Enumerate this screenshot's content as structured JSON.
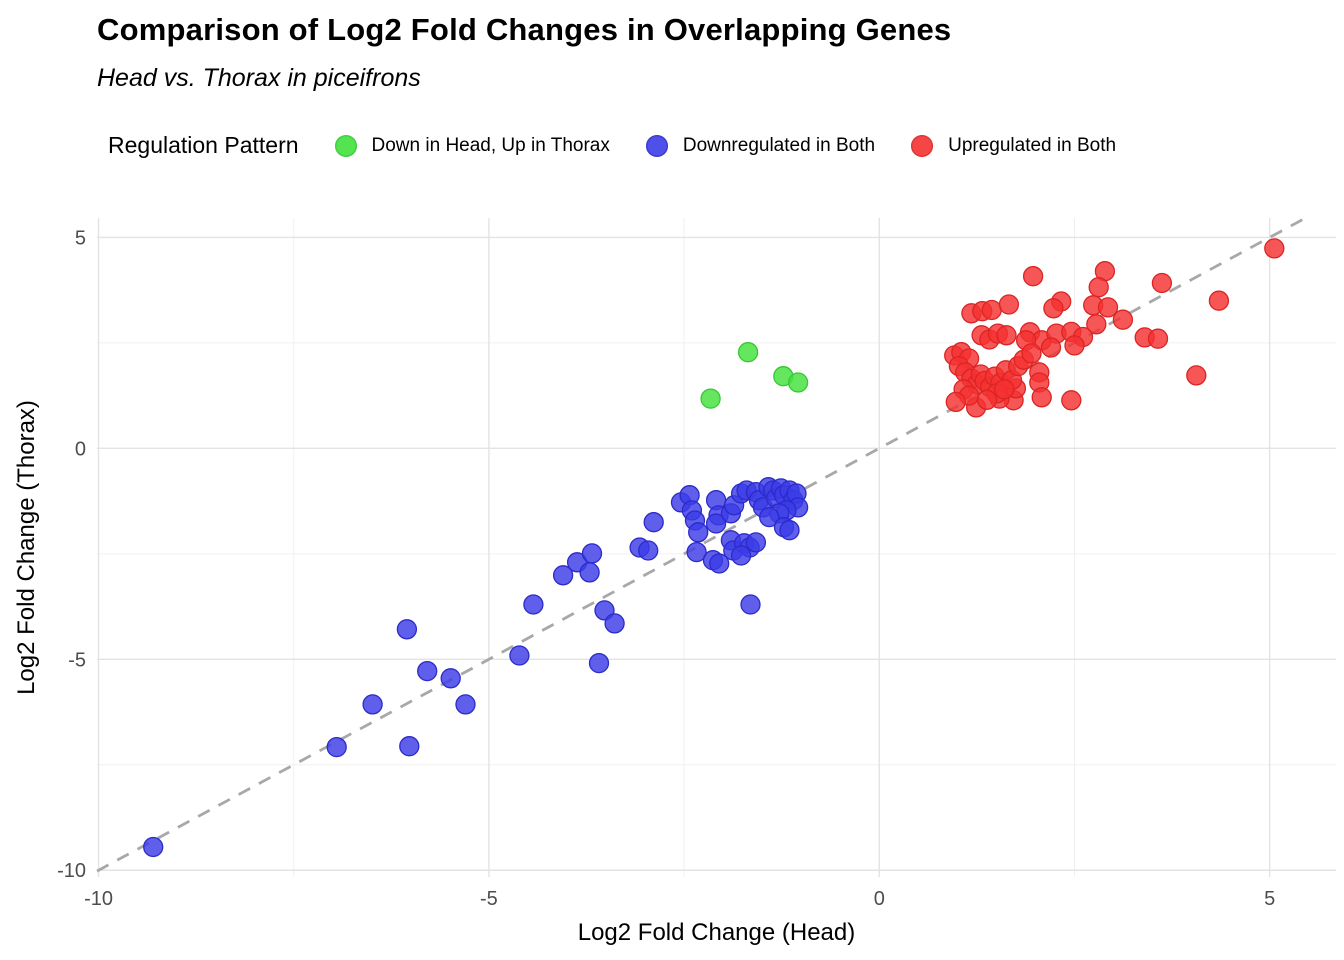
{
  "header": {
    "title": "Comparison of Log2 Fold Changes in Overlapping Genes",
    "subtitle": "Head vs. Thorax in piceifrons"
  },
  "legend": {
    "title": "Regulation Pattern",
    "position": "top"
  },
  "chart_data": {
    "type": "scatter",
    "title": "Comparison of Log2 Fold Changes in Overlapping Genes",
    "subtitle": "Head vs. Thorax in piceifrons",
    "xlabel": "Log2 Fold Change (Head)",
    "ylabel": "Log2 Fold Change (Thorax)",
    "xlim": [
      -10.02,
      5.85
    ],
    "ylim": [
      -10.16,
      5.46
    ],
    "x_ticks": [
      -10,
      -5,
      0,
      5
    ],
    "x_tick_labels": [
      "-10",
      "-5",
      "0",
      "5"
    ],
    "y_ticks": [
      5,
      0,
      -5,
      -10
    ],
    "y_tick_labels": [
      "5",
      "0",
      "-5",
      "-10"
    ],
    "x_minor_ticks": [
      -7.5,
      -2.5,
      2.5
    ],
    "y_minor_ticks": [
      -7.5,
      -2.5,
      2.5
    ],
    "grid": true,
    "identity_line": {
      "type": "dashed",
      "slope": 1,
      "intercept": 0,
      "color": "#a8a8a8"
    },
    "point_radius": 9.5,
    "point_opacity": 0.82,
    "colors": {
      "major_grid": "#e3e3e3",
      "minor_grid": "#f0f0f0",
      "tick_text": "#4d4d4d"
    },
    "series": [
      {
        "name": "Down in Head, Up in Thorax",
        "color": "#42E23C",
        "stroke": "#35C832",
        "points": [
          [
            -1.68,
            2.28
          ],
          [
            -1.23,
            1.71
          ],
          [
            -1.04,
            1.56
          ],
          [
            -2.16,
            1.18
          ]
        ]
      },
      {
        "name": "Downregulated in Both",
        "color": "#3C3CE8",
        "stroke": "#2B2BC9",
        "points": [
          [
            -9.3,
            -9.45
          ],
          [
            -6.95,
            -7.08
          ],
          [
            -6.02,
            -7.06
          ],
          [
            -6.49,
            -6.07
          ],
          [
            -5.3,
            -6.07
          ],
          [
            -5.79,
            -5.28
          ],
          [
            -5.49,
            -5.45
          ],
          [
            -6.05,
            -4.29
          ],
          [
            -4.61,
            -4.91
          ],
          [
            -3.59,
            -5.09
          ],
          [
            -4.43,
            -3.7
          ],
          [
            -4.05,
            -3.01
          ],
          [
            -3.87,
            -2.7
          ],
          [
            -3.68,
            -2.49
          ],
          [
            -3.71,
            -2.94
          ],
          [
            -3.52,
            -3.84
          ],
          [
            -3.39,
            -4.15
          ],
          [
            -3.07,
            -2.35
          ],
          [
            -2.89,
            -1.75
          ],
          [
            -2.96,
            -2.42
          ],
          [
            -2.54,
            -1.28
          ],
          [
            -2.43,
            -1.11
          ],
          [
            -2.4,
            -1.47
          ],
          [
            -2.36,
            -1.71
          ],
          [
            -2.32,
            -1.99
          ],
          [
            -2.09,
            -1.23
          ],
          [
            -2.06,
            -1.59
          ],
          [
            -2.09,
            -1.78
          ],
          [
            -2.34,
            -2.46
          ],
          [
            -2.13,
            -2.65
          ],
          [
            -2.05,
            -2.73
          ],
          [
            -1.9,
            -2.18
          ],
          [
            -1.87,
            -2.42
          ],
          [
            -1.73,
            -2.25
          ],
          [
            -1.66,
            -2.35
          ],
          [
            -1.9,
            -1.54
          ],
          [
            -1.86,
            -1.35
          ],
          [
            -1.77,
            -1.07
          ],
          [
            -1.7,
            -1.0
          ],
          [
            -1.58,
            -1.04
          ],
          [
            -1.54,
            -1.23
          ],
          [
            -1.49,
            -1.4
          ],
          [
            -1.42,
            -0.92
          ],
          [
            -1.36,
            -1.0
          ],
          [
            -1.32,
            -1.18
          ],
          [
            -1.26,
            -0.95
          ],
          [
            -1.22,
            -1.11
          ],
          [
            -1.15,
            -1.0
          ],
          [
            -1.1,
            -1.23
          ],
          [
            -1.06,
            -1.07
          ],
          [
            -1.04,
            -1.4
          ],
          [
            -1.19,
            -1.47
          ],
          [
            -1.28,
            -1.54
          ],
          [
            -1.41,
            -1.63
          ],
          [
            -1.22,
            -1.87
          ],
          [
            -1.15,
            -1.94
          ],
          [
            -1.65,
            -3.7
          ],
          [
            -1.58,
            -2.23
          ],
          [
            -1.77,
            -2.54
          ]
        ]
      },
      {
        "name": "Upregulated in Both",
        "color": "#F53131",
        "stroke": "#DB2424",
        "points": [
          [
            5.06,
            4.74
          ],
          [
            2.89,
            4.2
          ],
          [
            1.97,
            4.08
          ],
          [
            2.81,
            3.82
          ],
          [
            3.62,
            3.92
          ],
          [
            4.35,
            3.5
          ],
          [
            2.74,
            3.39
          ],
          [
            2.93,
            3.34
          ],
          [
            2.33,
            3.48
          ],
          [
            2.23,
            3.32
          ],
          [
            1.18,
            3.2
          ],
          [
            1.32,
            3.25
          ],
          [
            1.44,
            3.28
          ],
          [
            1.66,
            3.41
          ],
          [
            3.12,
            3.05
          ],
          [
            2.78,
            2.94
          ],
          [
            1.93,
            2.75
          ],
          [
            2.08,
            2.56
          ],
          [
            2.27,
            2.72
          ],
          [
            2.46,
            2.76
          ],
          [
            2.61,
            2.64
          ],
          [
            3.4,
            2.63
          ],
          [
            3.57,
            2.6
          ],
          [
            1.31,
            2.68
          ],
          [
            1.41,
            2.58
          ],
          [
            1.52,
            2.72
          ],
          [
            1.63,
            2.68
          ],
          [
            0.96,
            2.2
          ],
          [
            1.05,
            2.28
          ],
          [
            1.15,
            2.13
          ],
          [
            1.88,
            2.56
          ],
          [
            2.2,
            2.39
          ],
          [
            2.5,
            2.44
          ],
          [
            2.05,
            1.8
          ],
          [
            2.05,
            1.56
          ],
          [
            2.08,
            1.21
          ],
          [
            2.46,
            1.14
          ],
          [
            1.72,
            1.14
          ],
          [
            1.24,
            0.97
          ],
          [
            1.75,
            1.42
          ],
          [
            4.06,
            1.73
          ],
          [
            1.54,
            1.18
          ],
          [
            1.02,
            1.95
          ],
          [
            1.1,
            1.8
          ],
          [
            1.18,
            1.65
          ],
          [
            1.25,
            1.52
          ],
          [
            1.08,
            1.4
          ],
          [
            1.15,
            1.25
          ],
          [
            1.3,
            1.75
          ],
          [
            1.35,
            1.6
          ],
          [
            1.42,
            1.45
          ],
          [
            1.48,
            1.7
          ],
          [
            1.55,
            1.55
          ],
          [
            1.62,
            1.85
          ],
          [
            1.7,
            1.62
          ],
          [
            1.78,
            1.95
          ],
          [
            1.5,
            1.3
          ],
          [
            1.6,
            1.4
          ],
          [
            0.98,
            1.1
          ],
          [
            1.38,
            1.15
          ],
          [
            1.85,
            2.1
          ],
          [
            1.95,
            2.25
          ]
        ]
      }
    ]
  }
}
